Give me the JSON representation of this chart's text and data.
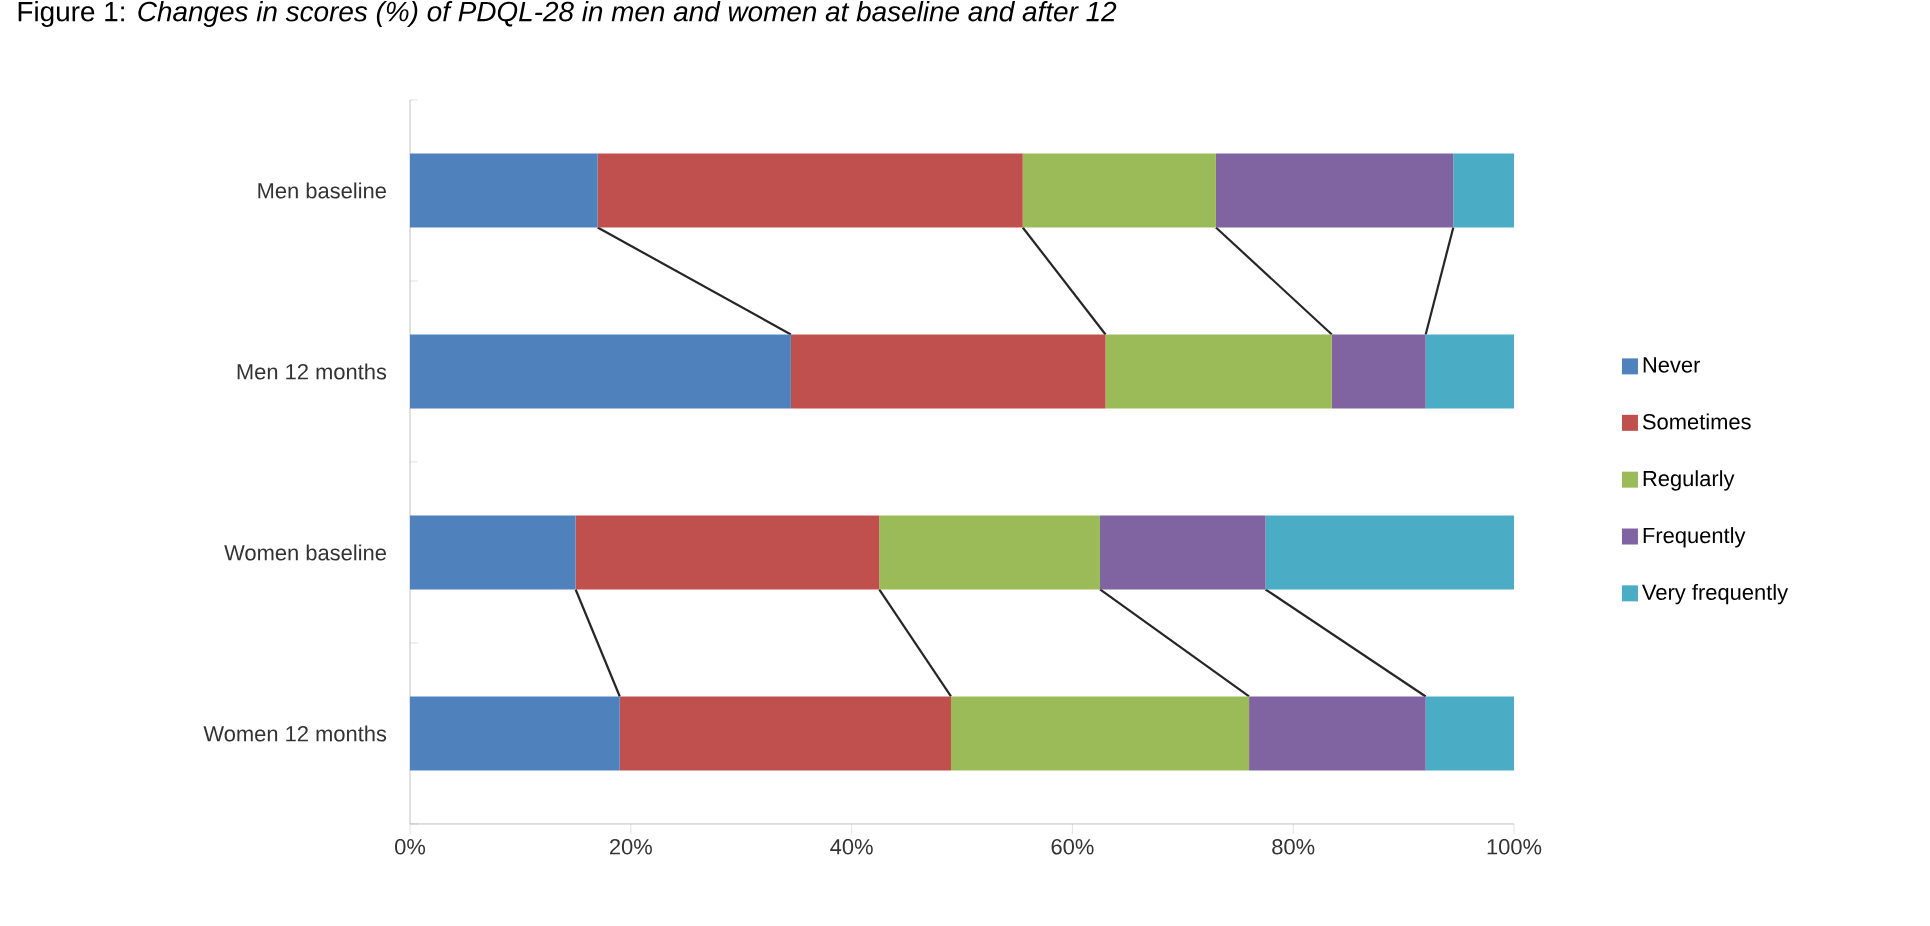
{
  "chart_data": {
    "type": "bar",
    "orientation": "horizontal",
    "stacked": true,
    "title": "Figure 1: *Changes in scores (%) of PDQL-28 in men and women at baseline and after 12*",
    "categories": [
      "Men baseline",
      "Men 12 months",
      "Women baseline",
      "Women 12 months"
    ],
    "series": [
      {
        "name": "Never",
        "color": "#4f81bd",
        "values": [
          17,
          34.5,
          15,
          19
        ]
      },
      {
        "name": "Sometimes",
        "color": "#c0504d",
        "values": [
          38.5,
          28.5,
          27.5,
          30
        ]
      },
      {
        "name": "Regularly",
        "color": "#9bbb59",
        "values": [
          17.5,
          20.5,
          20,
          27
        ]
      },
      {
        "name": "Frequently",
        "color": "#8064a2",
        "values": [
          21.5,
          8.5,
          15,
          16
        ]
      },
      {
        "name": "Very frequently",
        "color": "#4bacc6",
        "values": [
          5.5,
          8,
          22.5,
          8
        ]
      }
    ],
    "xlim": [
      0,
      100
    ],
    "xticks": [
      {
        "value": 0,
        "label": "0%"
      },
      {
        "value": 20,
        "label": "20%"
      },
      {
        "value": 40,
        "label": "40%"
      },
      {
        "value": 60,
        "label": "60%"
      },
      {
        "value": 80,
        "label": "80%"
      },
      {
        "value": 100,
        "label": "100%"
      }
    ],
    "grid": false,
    "legend": "right"
  }
}
